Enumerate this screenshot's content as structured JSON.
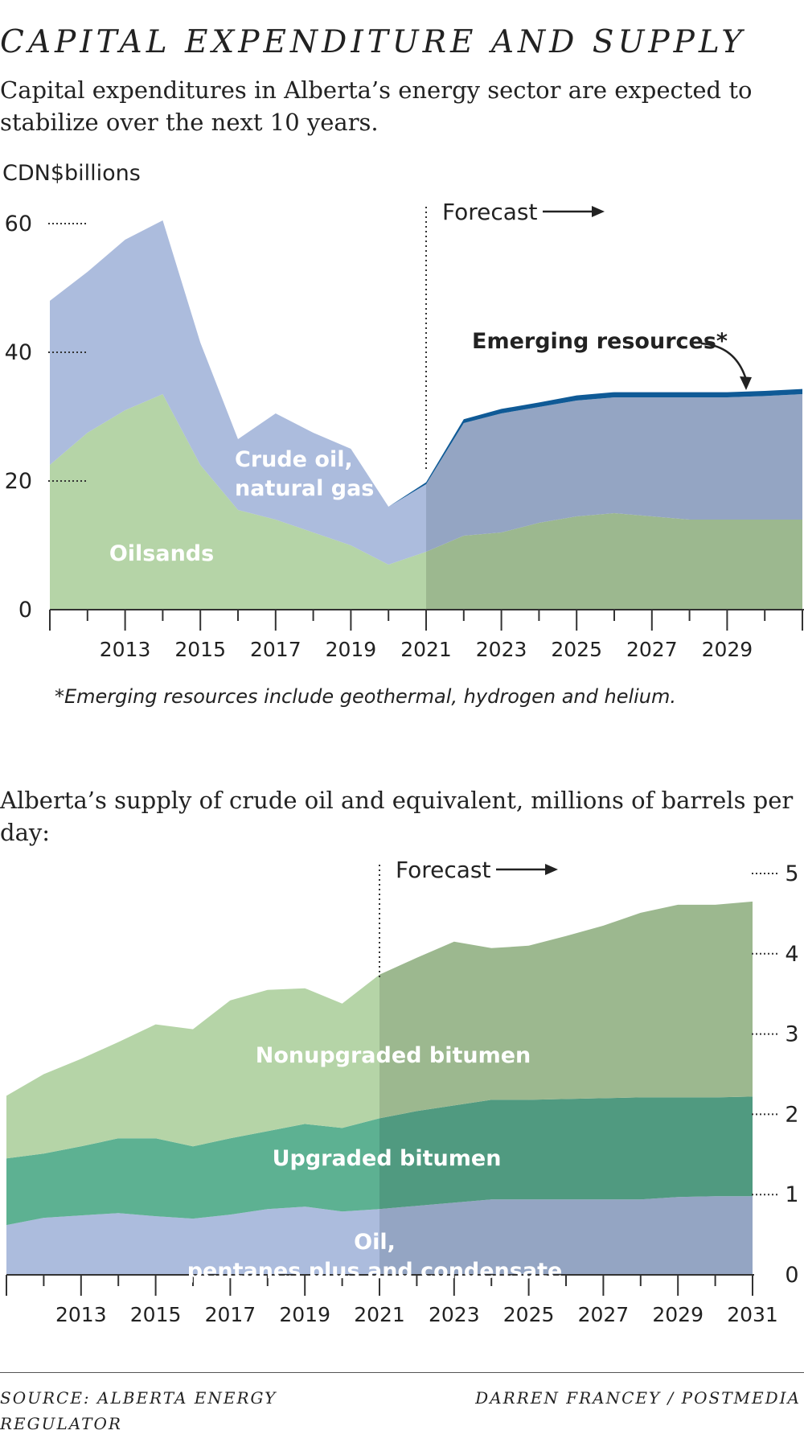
{
  "header": {
    "title": "CAPITAL EXPENDITURE AND SUPPLY",
    "subtitle": "Capital expenditures in Alberta’s energy sector are expected to stabilize over the next 10 years."
  },
  "chart1_unit": "CDN$billions",
  "chart1_footnote": "*Emerging resources include geothermal, hydrogen and helium.",
  "chart2_subtitle": "Alberta’s supply of crude oil and equivalent, millions of barrels per day:",
  "footer": {
    "source": "SOURCE: ALBERTA ENERGY REGULATOR",
    "credit": "DARREN FRANCEY / POSTMEDIA"
  },
  "chart_data": [
    {
      "type": "area",
      "stacked": true,
      "ylabel": "CDN$billions",
      "ylim": [
        0,
        60
      ],
      "yticks": [
        0,
        20,
        40,
        60
      ],
      "xlim": [
        2011,
        2031
      ],
      "xticks": [
        2011,
        2012,
        2013,
        2014,
        2015,
        2016,
        2017,
        2018,
        2019,
        2020,
        2021,
        2022,
        2023,
        2024,
        2025,
        2026,
        2027,
        2028,
        2029,
        2030,
        2031
      ],
      "xtick_labels": [
        "2013",
        "2015",
        "2017",
        "2019",
        "2021",
        "2023",
        "2025",
        "2027",
        "2029"
      ],
      "forecast_start": 2021,
      "forecast_label": "Forecast",
      "series": [
        {
          "name": "Oilsands",
          "color": "#b5d4a7",
          "forecast_color": "#9cb88f",
          "x": [
            2011,
            2012,
            2013,
            2014,
            2015,
            2016,
            2017,
            2018,
            2019,
            2020,
            2021,
            2022,
            2023,
            2024,
            2025,
            2026,
            2027,
            2028,
            2029,
            2030,
            2031
          ],
          "values": [
            22.5,
            27.5,
            31,
            33.5,
            22.5,
            15.5,
            14,
            12,
            10,
            7,
            9,
            11.5,
            12,
            13.5,
            14.5,
            15,
            14.5,
            14,
            14,
            14,
            14
          ]
        },
        {
          "name": "Crude oil, natural gas",
          "color": "#acbcdd",
          "forecast_color": "#94a5c3",
          "x": [
            2011,
            2012,
            2013,
            2014,
            2015,
            2016,
            2017,
            2018,
            2019,
            2020,
            2021,
            2022,
            2023,
            2024,
            2025,
            2026,
            2027,
            2028,
            2029,
            2030,
            2031
          ],
          "values": [
            25.5,
            25,
            26.5,
            27,
            19,
            11,
            16.5,
            15.5,
            15,
            9,
            10.5,
            17.5,
            18.5,
            18,
            18,
            18,
            18.5,
            19,
            19,
            19.2,
            19.5
          ]
        },
        {
          "name": "Emerging resources*",
          "color": "#0f5a96",
          "x": [
            2020,
            2021,
            2022,
            2023,
            2024,
            2025,
            2026,
            2027,
            2028,
            2029,
            2030,
            2031
          ],
          "values": [
            0,
            0.3,
            0.6,
            0.7,
            0.7,
            0.8,
            0.8,
            0.8,
            0.8,
            0.8,
            0.8,
            0.8
          ]
        }
      ]
    },
    {
      "type": "area",
      "stacked": true,
      "ylim": [
        0,
        5
      ],
      "yticks": [
        0,
        1,
        2,
        3,
        4,
        5
      ],
      "xlim": [
        2011,
        2031
      ],
      "xticks": [
        2011,
        2012,
        2013,
        2014,
        2015,
        2016,
        2017,
        2018,
        2019,
        2020,
        2021,
        2022,
        2023,
        2024,
        2025,
        2026,
        2027,
        2028,
        2029,
        2030,
        2031
      ],
      "xtick_labels": [
        "2013",
        "2015",
        "2017",
        "2019",
        "2021",
        "2023",
        "2025",
        "2027",
        "2029",
        "2031"
      ],
      "forecast_start": 2021,
      "forecast_label": "Forecast",
      "series": [
        {
          "name": "Oil, pentanes plus and condensate",
          "color": "#acbcdd",
          "forecast_color": "#94a5c3",
          "x": [
            2011,
            2012,
            2013,
            2014,
            2015,
            2016,
            2017,
            2018,
            2019,
            2020,
            2021,
            2022,
            2023,
            2024,
            2025,
            2026,
            2027,
            2028,
            2029,
            2030,
            2031
          ],
          "values": [
            0.62,
            0.71,
            0.74,
            0.77,
            0.73,
            0.7,
            0.75,
            0.82,
            0.85,
            0.79,
            0.82,
            0.86,
            0.9,
            0.94,
            0.94,
            0.94,
            0.94,
            0.94,
            0.97,
            0.98,
            0.98
          ]
        },
        {
          "name": "Upgraded bitumen",
          "color": "#5db192",
          "forecast_color": "#509a80",
          "x": [
            2011,
            2012,
            2013,
            2014,
            2015,
            2016,
            2017,
            2018,
            2019,
            2020,
            2021,
            2022,
            2023,
            2024,
            2025,
            2026,
            2027,
            2028,
            2029,
            2030,
            2031
          ],
          "values": [
            0.83,
            0.8,
            0.86,
            0.93,
            0.97,
            0.9,
            0.95,
            0.97,
            1.03,
            1.04,
            1.13,
            1.18,
            1.21,
            1.24,
            1.24,
            1.25,
            1.26,
            1.27,
            1.24,
            1.23,
            1.24
          ]
        },
        {
          "name": "Nonupgraded bitumen",
          "color": "#b5d4a7",
          "forecast_color": "#9cb88f",
          "x": [
            2011,
            2012,
            2013,
            2014,
            2015,
            2016,
            2017,
            2018,
            2019,
            2020,
            2021,
            2022,
            2023,
            2024,
            2025,
            2026,
            2027,
            2028,
            2029,
            2030,
            2031
          ],
          "values": [
            0.78,
            0.99,
            1.09,
            1.2,
            1.42,
            1.46,
            1.72,
            1.76,
            1.69,
            1.55,
            1.79,
            1.91,
            2.04,
            1.89,
            1.92,
            2.03,
            2.15,
            2.3,
            2.4,
            2.4,
            2.43
          ]
        }
      ]
    }
  ]
}
